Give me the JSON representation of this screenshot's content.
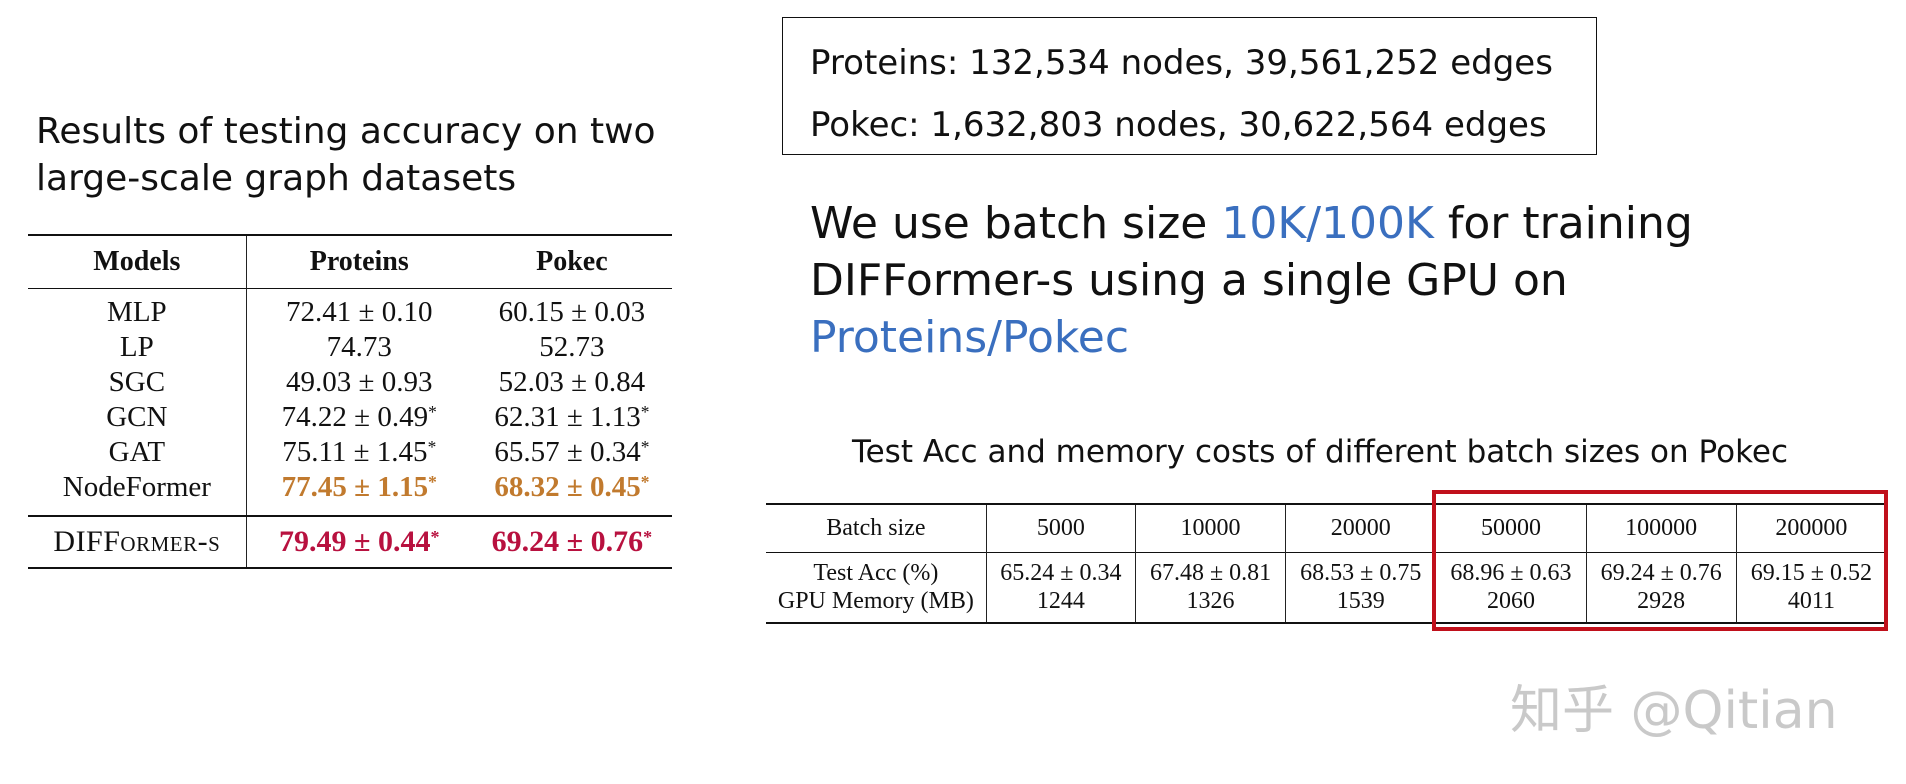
{
  "left": {
    "heading_line1": "Results of testing accuracy on two",
    "heading_line2": "large-scale graph datasets",
    "table": {
      "headers": [
        "Models",
        "Proteins",
        "Pokec"
      ],
      "rows": [
        {
          "model": "MLP",
          "proteins": "72.41 ± 0.10",
          "pokec": "60.15 ± 0.03"
        },
        {
          "model": "LP",
          "proteins": "74.73",
          "pokec": "52.73"
        },
        {
          "model": "SGC",
          "proteins": "49.03 ± 0.93",
          "pokec": "52.03 ± 0.84"
        },
        {
          "model": "GCN",
          "proteins": "74.22 ± 0.49",
          "pokec": "62.31 ± 1.13"
        },
        {
          "model": "GAT",
          "proteins": "75.11 ± 1.45",
          "pokec": "65.57 ± 0.34"
        },
        {
          "model": "NodeFormer",
          "proteins": "77.45 ± 1.15",
          "pokec": "68.32 ± 0.45"
        },
        {
          "model": "DIFFormer-s",
          "proteins": "79.49 ± 0.44",
          "pokec": "69.24 ± 0.76"
        }
      ],
      "star": "*"
    }
  },
  "stats": {
    "line1": "Proteins: 132,534 nodes,  39,561,252 edges",
    "line2": "Pokec: 1,632,803 nodes, 30,622,564 edges"
  },
  "batch_text": {
    "part1": "We use batch size ",
    "highlight1": "10K/100K",
    "part2": " for training",
    "line2": "DIFFormer-s using a single GPU on",
    "highlight2": "Proteins/Pokec"
  },
  "batch_table": {
    "caption": "Test Acc and memory costs of different batch sizes on Pokec",
    "header_label": "Batch size",
    "batch_sizes": [
      "5000",
      "10000",
      "20000",
      "50000",
      "100000",
      "200000"
    ],
    "row1_label": "Test Acc (%)",
    "test_acc": [
      "65.24 ± 0.34",
      "67.48 ± 0.81",
      "68.53 ± 0.75",
      "68.96 ± 0.63",
      "69.24 ± 0.76",
      "69.15 ± 0.52"
    ],
    "row2_label": "GPU Memory (MB)",
    "gpu_memory": [
      "1244",
      "1326",
      "1539",
      "2060",
      "2928",
      "4011"
    ]
  },
  "watermark": "知乎 @Qitian",
  "colors": {
    "highlight_blue": "#3a6fbf",
    "second_best_orange": "#c17a2e",
    "best_crimson": "#b8113f",
    "box_red": "#c0101b"
  }
}
